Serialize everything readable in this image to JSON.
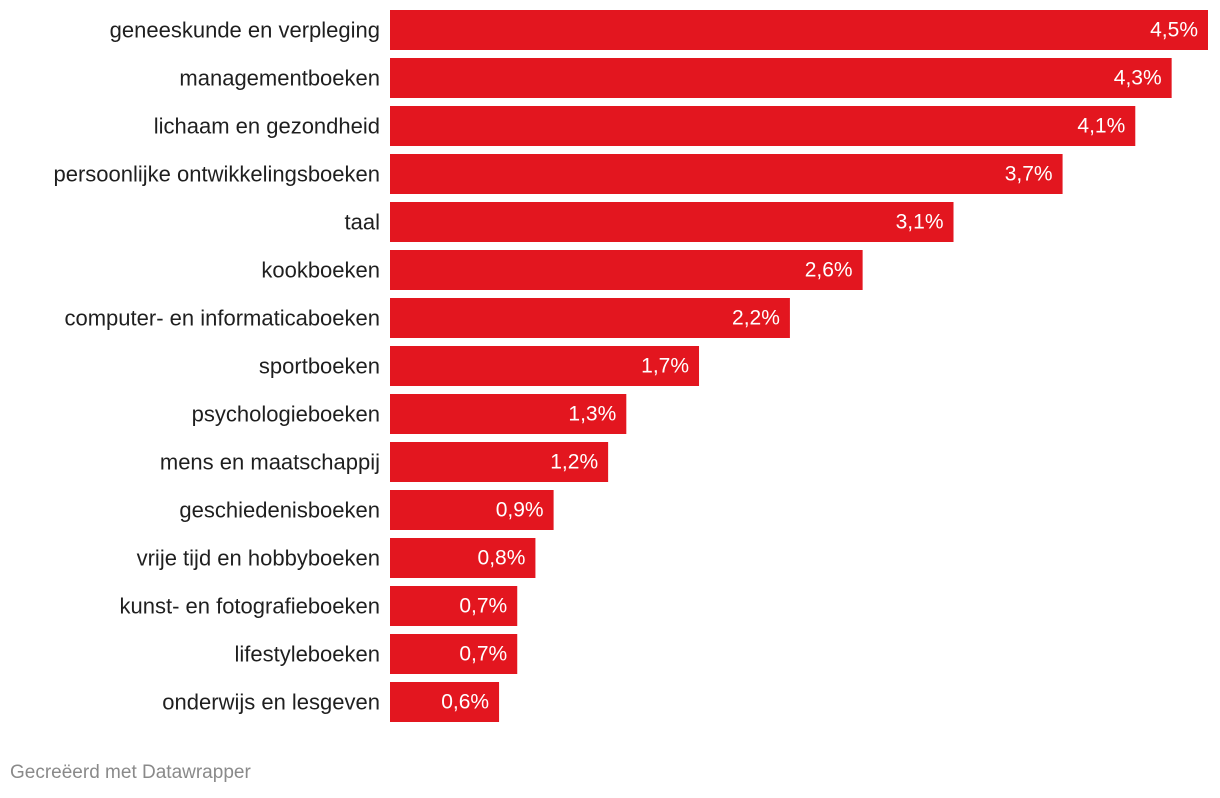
{
  "chart_data": {
    "type": "bar",
    "orientation": "horizontal",
    "categories": [
      "geneeskunde en verpleging",
      "managementboeken",
      "lichaam en gezondheid",
      "persoonlijke ontwikkelingsboeken",
      "taal",
      "kookboeken",
      "computer- en informaticaboeken",
      "sportboeken",
      "psychologieboeken",
      "mens en maatschappij",
      "geschiedenisboeken",
      "vrije tijd en hobbyboeken",
      "kunst- en fotografieboeken",
      "lifestyleboeken",
      "onderwijs en lesgeven"
    ],
    "values": [
      4.5,
      4.3,
      4.1,
      3.7,
      3.1,
      2.6,
      2.2,
      1.7,
      1.3,
      1.2,
      0.9,
      0.8,
      0.7,
      0.7,
      0.6
    ],
    "value_labels": [
      "4,5%",
      "4,3%",
      "4,1%",
      "3,7%",
      "3,1%",
      "2,6%",
      "2,2%",
      "1,7%",
      "1,3%",
      "1,2%",
      "0,9%",
      "0,8%",
      "0,7%",
      "0,7%",
      "0,6%"
    ],
    "xlim": [
      0,
      4.5
    ],
    "grid": false,
    "bar_color": "#e3161f",
    "value_label_color": "#ffffff"
  },
  "footer": {
    "credit": "Gecreëerd met Datawrapper"
  }
}
